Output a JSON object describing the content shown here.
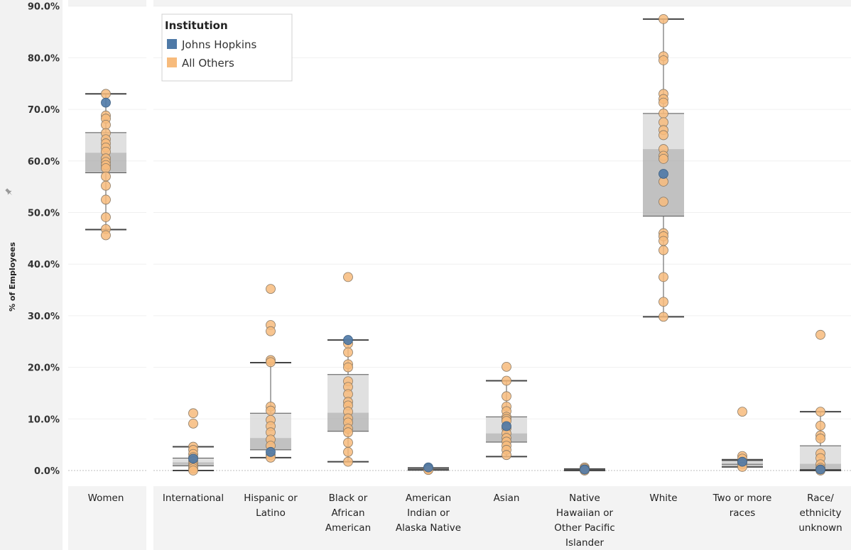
{
  "chart_data": {
    "type": "scatter",
    "subtype": "box-and-dot",
    "ylabel": "% of Employees",
    "ylim": [
      0,
      90
    ],
    "yticks": [
      "0.0%",
      "10.0%",
      "20.0%",
      "30.0%",
      "40.0%",
      "50.0%",
      "60.0%",
      "70.0%",
      "80.0%",
      "90.0%"
    ],
    "grid": true,
    "legend": {
      "title": "Institution",
      "position": "top-left",
      "entries": [
        {
          "name": "Johns Hopkins",
          "color": "#4e79a7"
        },
        {
          "name": "All Others",
          "color": "#f7bb7c"
        }
      ]
    },
    "categories": [
      {
        "label_lines": [
          "Women"
        ],
        "box": {
          "whisker_low": 46.7,
          "q1": 57.7,
          "median": 61.6,
          "q3": 65.5,
          "whisker_high": 73.0
        },
        "jhu": [
          71.3
        ],
        "others": [
          73.0,
          68.8,
          68.2,
          67.0,
          65.4,
          64.2,
          63.4,
          62.6,
          61.8,
          60.5,
          59.8,
          59.2,
          58.6,
          57.0,
          55.2,
          52.5,
          49.1,
          46.8,
          45.6
        ]
      },
      {
        "label_lines": [
          "International"
        ],
        "box": {
          "whisker_low": 0.0,
          "q1": 0.9,
          "median": 1.6,
          "q3": 2.4,
          "whisker_high": 4.6
        },
        "jhu": [
          2.3
        ],
        "others": [
          11.1,
          9.1,
          4.6,
          4.0,
          3.2,
          2.6,
          1.8,
          1.2,
          0.8,
          0.4,
          0.0
        ]
      },
      {
        "label_lines": [
          "Hispanic or",
          "Latino"
        ],
        "box": {
          "whisker_low": 2.5,
          "q1": 4.0,
          "median": 6.3,
          "q3": 11.1,
          "whisker_high": 20.9
        },
        "jhu": [
          3.6
        ],
        "others": [
          35.2,
          28.2,
          27.0,
          21.4,
          21.0,
          12.4,
          11.6,
          9.8,
          8.6,
          7.4,
          6.0,
          4.8,
          3.0,
          2.5
        ]
      },
      {
        "label_lines": [
          "Black or",
          "African",
          "American"
        ],
        "box": {
          "whisker_low": 1.7,
          "q1": 7.6,
          "median": 11.2,
          "q3": 18.6,
          "whisker_high": 25.3
        },
        "jhu": [
          25.3
        ],
        "others": [
          37.5,
          24.6,
          22.9,
          20.6,
          20.0,
          17.3,
          16.2,
          14.8,
          13.3,
          12.6,
          11.4,
          10.1,
          9.3,
          8.1,
          7.4,
          5.4,
          3.6,
          1.7
        ]
      },
      {
        "label_lines": [
          "American",
          "Indian or",
          "Alaska Native"
        ],
        "box": {
          "whisker_low": 0.1,
          "q1": 0.2,
          "median": 0.3,
          "q3": 0.4,
          "whisker_high": 0.5
        },
        "jhu": [
          0.6
        ],
        "others": [
          0.5,
          0.4,
          0.3,
          0.2,
          0.1
        ]
      },
      {
        "label_lines": [
          "Asian"
        ],
        "box": {
          "whisker_low": 2.7,
          "q1": 5.5,
          "median": 7.2,
          "q3": 10.4,
          "whisker_high": 17.4
        },
        "jhu": [
          8.6
        ],
        "others": [
          20.1,
          17.4,
          14.4,
          12.4,
          11.5,
          10.4,
          10.0,
          9.6,
          8.2,
          7.2,
          6.3,
          5.6,
          4.8,
          4.0,
          3.0
        ]
      },
      {
        "label_lines": [
          "Native",
          "Hawaiian or",
          "Other Pacific",
          "Islander"
        ],
        "box": {
          "whisker_low": 0.0,
          "q1": 0.1,
          "median": 0.15,
          "q3": 0.2,
          "whisker_high": 0.3
        },
        "jhu": [
          0.2
        ],
        "others": [
          0.6,
          0.4,
          0.2,
          0.1,
          0.0
        ]
      },
      {
        "label_lines": [
          "White"
        ],
        "box": {
          "whisker_low": 29.8,
          "q1": 49.3,
          "median": 62.3,
          "q3": 69.2,
          "whisker_high": 87.5
        },
        "jhu": [
          57.5
        ],
        "others": [
          87.5,
          80.3,
          79.5,
          73.0,
          72.0,
          71.3,
          69.2,
          67.5,
          66.0,
          65.0,
          62.3,
          61.0,
          60.4,
          56.0,
          52.1,
          46.0,
          45.4,
          44.5,
          42.7,
          37.5,
          32.7,
          29.8
        ]
      },
      {
        "label_lines": [
          "Two or more",
          "races"
        ],
        "box": {
          "whisker_low": 0.7,
          "q1": 1.1,
          "median": 1.5,
          "q3": 1.9,
          "whisker_high": 2.1
        },
        "jhu": [
          1.7
        ],
        "others": [
          11.4,
          2.8,
          2.3,
          1.6,
          1.2,
          0.7
        ]
      },
      {
        "label_lines": [
          "Race/",
          "ethnicity",
          "unknown"
        ],
        "box": {
          "whisker_low": 0.0,
          "q1": 0.2,
          "median": 1.3,
          "q3": 4.8,
          "whisker_high": 11.4
        },
        "jhu": [
          0.2
        ],
        "others": [
          26.3,
          11.4,
          8.7,
          6.8,
          6.2,
          3.3,
          2.4,
          1.2,
          0.5,
          0.0
        ]
      }
    ]
  }
}
